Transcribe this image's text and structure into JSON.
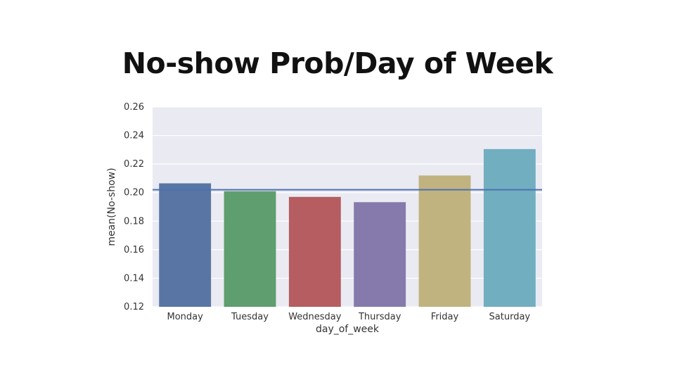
{
  "slide": {
    "title": "No-show Prob/Day of Week"
  },
  "chart_data": {
    "type": "bar",
    "categories": [
      "Monday",
      "Tuesday",
      "Wednesday",
      "Thursday",
      "Friday",
      "Saturday"
    ],
    "values": [
      0.2065,
      0.201,
      0.197,
      0.1933,
      0.212,
      0.2305
    ],
    "colors": [
      "#5975a4",
      "#5f9e6e",
      "#b55d60",
      "#857aab",
      "#c1b37f",
      "#71aec0"
    ],
    "xlabel": "day_of_week",
    "ylabel": "mean(No-show)",
    "ylim": [
      0.12,
      0.26
    ],
    "yticks": [
      "0.12",
      "0.14",
      "0.16",
      "0.18",
      "0.20",
      "0.22",
      "0.24",
      "0.26"
    ],
    "reference_line": {
      "y": 0.202,
      "color": "#4c72b0"
    },
    "plot_background": "#eaeaf2",
    "grid": true
  }
}
